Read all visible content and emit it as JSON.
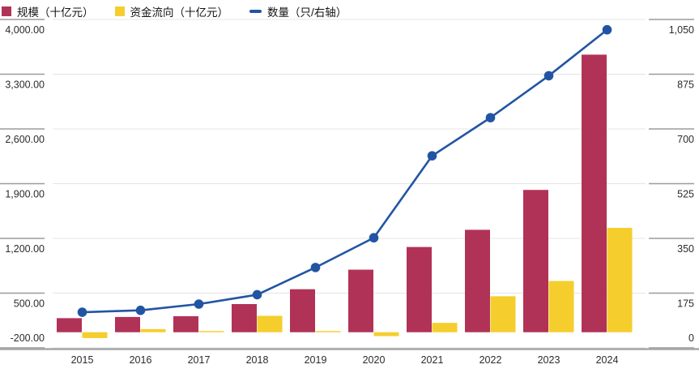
{
  "legend": {
    "scale_label": "规模（十亿元）",
    "flow_label": "资金流向（十亿元）",
    "count_label": "数量（只/右轴）"
  },
  "colors": {
    "scale_bar": "#b13257",
    "flow_bar": "#f5ce2e",
    "count_line": "#2155a3",
    "gridline": "#e4e4e4",
    "tick": "#9b9b9b",
    "axis_line": "#a6a6a6",
    "label_text": "#2b2b2b"
  },
  "chart_data": {
    "type": "combo-bar-line",
    "categories": [
      "2015",
      "2016",
      "2017",
      "2018",
      "2019",
      "2020",
      "2021",
      "2022",
      "2023",
      "2024"
    ],
    "series": [
      {
        "name": "规模（十亿元）",
        "type": "bar",
        "axis": "left",
        "values": [
          180,
          195,
          205,
          360,
          550,
          800,
          1090,
          1310,
          1820,
          3550
        ]
      },
      {
        "name": "资金流向（十亿元）",
        "type": "bar",
        "axis": "left",
        "values": [
          -75,
          40,
          15,
          210,
          15,
          -50,
          120,
          460,
          655,
          1335
        ]
      },
      {
        "name": "数量（只/右轴）",
        "type": "line",
        "axis": "right",
        "values": [
          114,
          120,
          140,
          170,
          257,
          352,
          614,
          736,
          870,
          1017
        ]
      }
    ],
    "left_axis": {
      "min": -200,
      "max": 4000,
      "tick_labels": [
        "4,000.00",
        "3,300.00",
        "2,600.00",
        "1,900.00",
        "1,200.00",
        "500.00",
        "-200.00"
      ]
    },
    "right_axis": {
      "min": 0,
      "max": 1050,
      "tick_labels": [
        "1,050",
        "875",
        "700",
        "525",
        "350",
        "175",
        "0"
      ]
    },
    "grid": true,
    "legend_position": "top-left",
    "title": ""
  }
}
